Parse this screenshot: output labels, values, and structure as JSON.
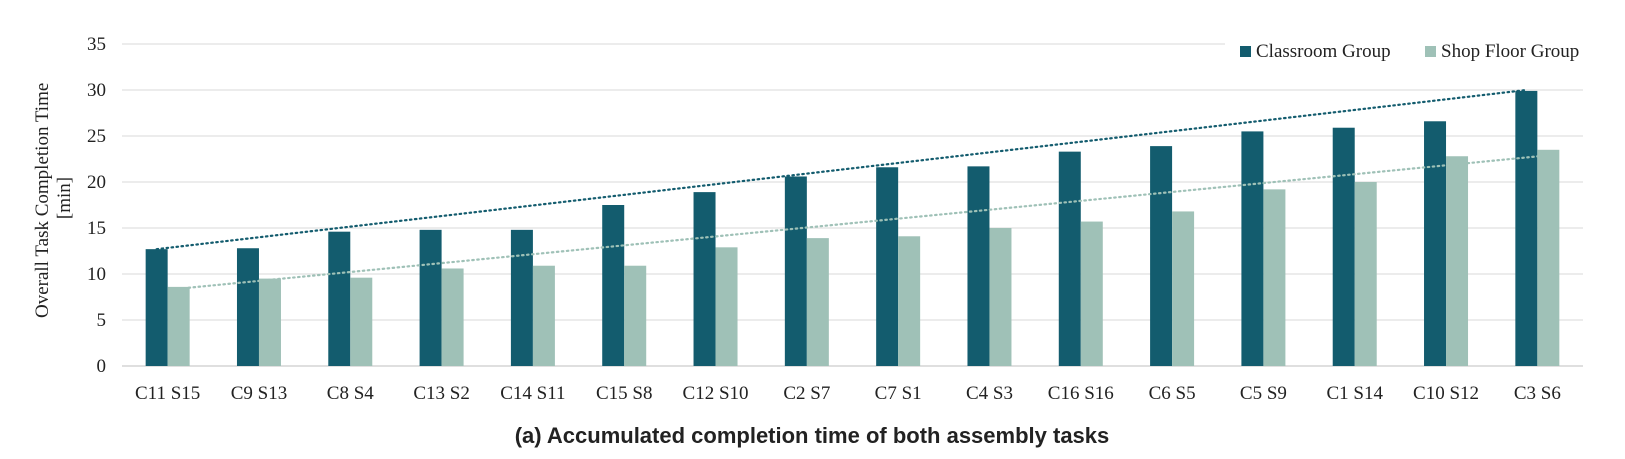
{
  "chart_data": {
    "type": "bar",
    "caption": "(a) Accumulated completion time of both assembly tasks",
    "ylabel_lines": [
      "Overall Task Completion Time",
      "[min]"
    ],
    "ylim": [
      0,
      35
    ],
    "yticks": [
      0,
      5,
      10,
      15,
      20,
      25,
      30,
      35
    ],
    "grid": true,
    "legend_position": "top-right",
    "categories": [
      "C11 S15",
      "C9 S13",
      "C8 S4",
      "C13 S2",
      "C14 S11",
      "C15 S8",
      "C12 S10",
      "C2 S7",
      "C7 S1",
      "C4 S3",
      "C16 S16",
      "C6 S5",
      "C5 S9",
      "C1 S14",
      "C10 S12",
      "C3 S6"
    ],
    "series": [
      {
        "name": "Classroom Group",
        "color": "#135c6e",
        "values": [
          12.7,
          12.8,
          14.6,
          14.8,
          14.8,
          17.5,
          18.9,
          20.6,
          21.6,
          21.7,
          23.3,
          23.9,
          25.5,
          25.9,
          26.6,
          29.9
        ],
        "trendline": [
          12.7,
          30.0
        ]
      },
      {
        "name": "Shop Floor Group",
        "color": "#9fc1b7",
        "values": [
          8.6,
          9.5,
          9.6,
          10.6,
          10.9,
          10.9,
          12.9,
          13.9,
          14.1,
          15.0,
          15.7,
          16.8,
          19.2,
          20.0,
          22.8,
          23.5
        ],
        "trendline": [
          8.4,
          22.9
        ]
      }
    ]
  }
}
